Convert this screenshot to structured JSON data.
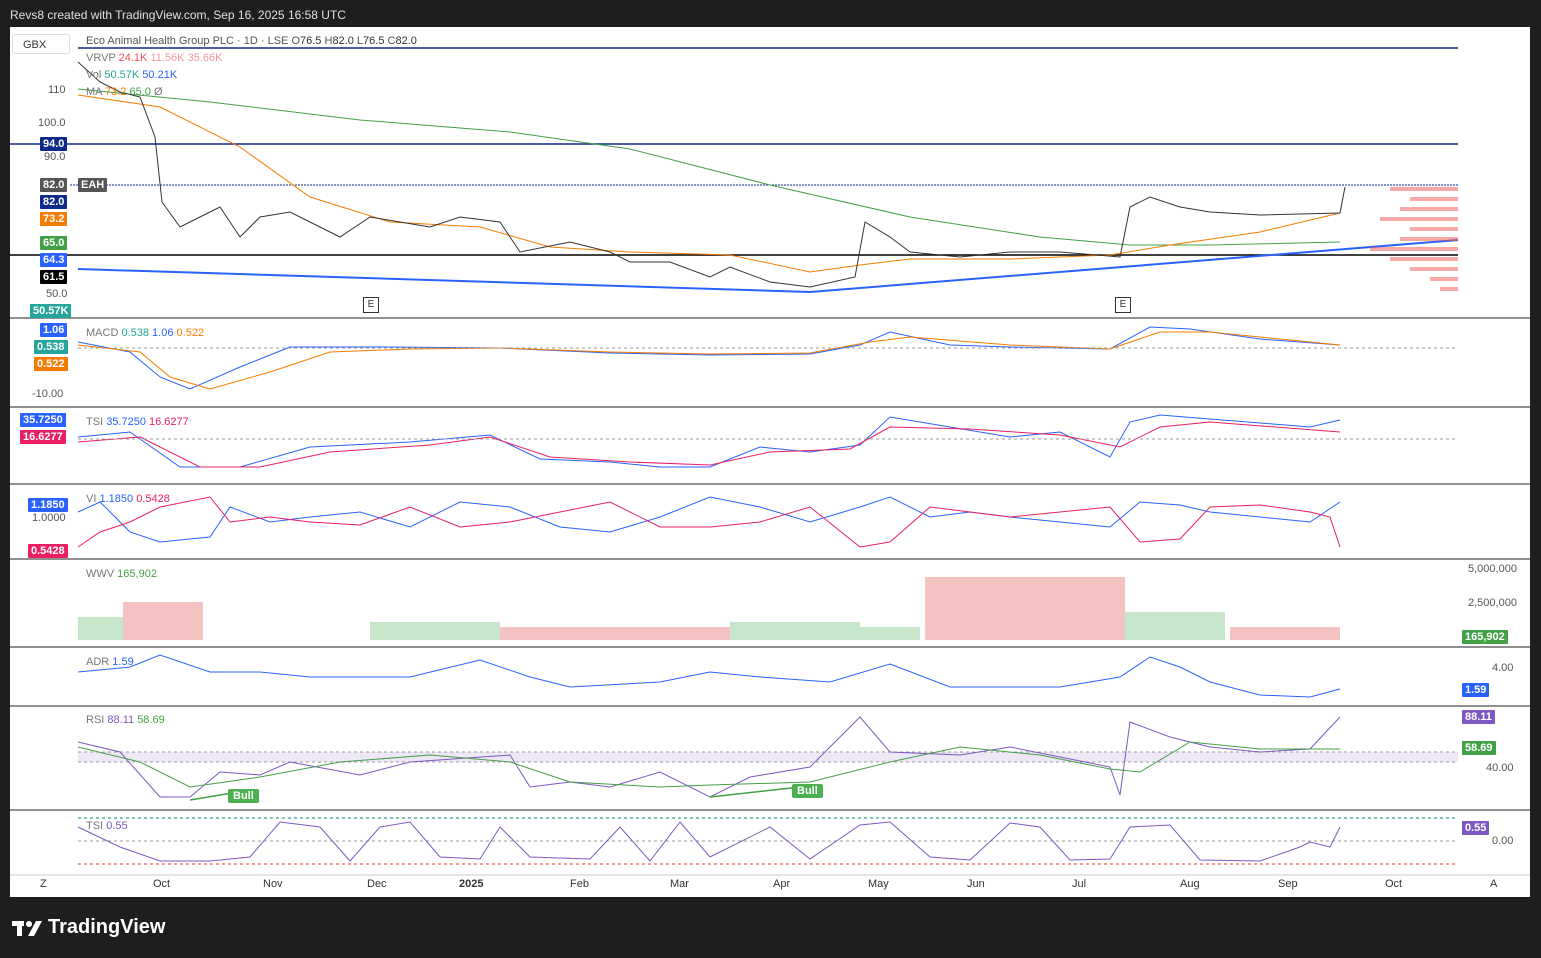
{
  "header": {
    "credit": "Revs8 created with TradingView.com, Sep 16, 2025 16:58 UTC"
  },
  "currency": "GBX",
  "main": {
    "title": "Eco Animal Health Group PLC · 1D · LSE",
    "ohlc": {
      "o_label": "O",
      "o": "76.5",
      "h_label": "H",
      "h": "82.0",
      "l_label": "L",
      "l": "76.5",
      "c_label": "C",
      "c": "82.0"
    },
    "vrvp": {
      "label": "VRVP",
      "v1": "24.1K",
      "v2": "11.56K",
      "v3": "35.66K"
    },
    "vol": {
      "label": "Vol",
      "v1": "50.57K",
      "v2": "50.21K"
    },
    "ma": {
      "label": "MA",
      "v1": "73.2",
      "v2": "65.0",
      "sym": "Ø"
    },
    "axis": [
      "110",
      "100.0",
      "90.0",
      "50.0"
    ],
    "tags": {
      "p94": "94.0",
      "p82a": "82.0",
      "eah": "EAH",
      "p82b": "82.0",
      "p732": "73.2",
      "p650": "65.0",
      "p643": "64.3",
      "p615": "61.5",
      "vol": "50.57K"
    },
    "earnings": [
      "E",
      "E"
    ]
  },
  "macd": {
    "label": "MACD",
    "v1": "0.538",
    "v2": "1.06",
    "v3": "0.522",
    "axis": "-10.00",
    "tags": [
      "1.06",
      "0.538",
      "0.522"
    ]
  },
  "tsi": {
    "label": "TSI",
    "v1": "35.7250",
    "v2": "16.6277",
    "tags": [
      "35.7250",
      "16.6277"
    ]
  },
  "vi": {
    "label": "VI",
    "v1": "1.1850",
    "v2": "0.5428",
    "axis": "1.0000",
    "tags": [
      "1.1850",
      "0.5428"
    ]
  },
  "wwv": {
    "label": "WWV",
    "v1": "165,902",
    "axis": [
      "5,000,000",
      "2,500,000"
    ],
    "tag": "165,902"
  },
  "adr": {
    "label": "ADR",
    "v1": "1.59",
    "axis": "4.00",
    "tag": "1.59"
  },
  "rsi": {
    "label": "RSI",
    "v1": "88.11",
    "v2": "58.69",
    "axis": "40.00",
    "tags": [
      "88.11",
      "58.69"
    ],
    "bull": [
      "Bull",
      "Bull"
    ]
  },
  "tsi2": {
    "label": "TSI",
    "v1": "0.55",
    "axis": "0.00",
    "tag": "0.55"
  },
  "time_axis": {
    "z": "Z",
    "a": "A",
    "months": [
      "Oct",
      "Nov",
      "Dec",
      "2025",
      "Feb",
      "Mar",
      "Apr",
      "May",
      "Jun",
      "Jul",
      "Aug",
      "Sep",
      "Oct"
    ]
  },
  "brand": "TradingView",
  "colors": {
    "up": "#26a69a",
    "down": "#ef5350",
    "blue": "#2962ff",
    "orange": "#f57c00",
    "green": "#43a047",
    "navy": "#0d2a8a"
  }
}
